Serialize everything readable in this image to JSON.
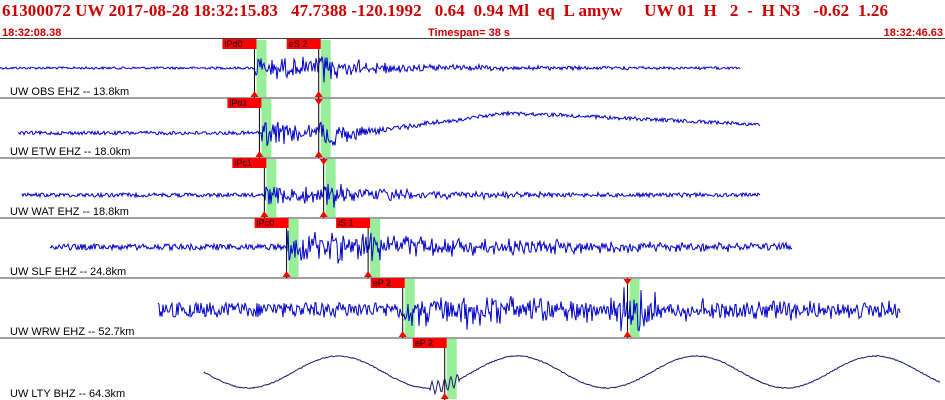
{
  "header": {
    "title": "61300072 UW 2017-08-28 18:32:15.83   47.7388 -120.1992   0.64  0.94 Ml  eq  L amyw     UW 01  H   2  -  H N3   -0.62  1.26",
    "start_time": "18:32:08.38",
    "end_time": "18:32:46.63",
    "timespan": "Timespan=  38 s"
  },
  "colors": {
    "title": "#cc0000",
    "trace": "#0000cc",
    "trace_lp": "#1a1a6e",
    "pick_box": "#ff0000",
    "pick_window": "#99ee99",
    "separator": "#404040"
  },
  "traces": [
    {
      "label": "UW OBS EHZ -- 13.8km",
      "picks": [
        {
          "label": "iPd0",
          "t": 10.3
        },
        {
          "label": "eS 2",
          "t": 12.9
        }
      ]
    },
    {
      "label": "UW ETW EHZ -- 18.0km",
      "picks": [
        {
          "label": "iPd1",
          "t": 10.5
        },
        {
          "label": "",
          "t": 12.9
        }
      ]
    },
    {
      "label": "UW WAT EHZ -- 18.8km",
      "picks": [
        {
          "label": "iPc1",
          "t": 10.7
        },
        {
          "label": "",
          "t": 13.1
        }
      ]
    },
    {
      "label": "UW SLF EHZ -- 24.8km",
      "picks": [
        {
          "label": "iPc0",
          "t": 11.6
        },
        {
          "label": "iS 1",
          "t": 14.9
        }
      ]
    },
    {
      "label": "UW WRW EHZ -- 52.7km",
      "picks": [
        {
          "label": "eP 2",
          "t": 16.3
        },
        {
          "label": "",
          "t": 25.4
        }
      ]
    },
    {
      "label": "UW LTY BHZ -- 64.3km",
      "picks": [
        {
          "label": "eP 2",
          "t": 18.0
        }
      ]
    }
  ]
}
